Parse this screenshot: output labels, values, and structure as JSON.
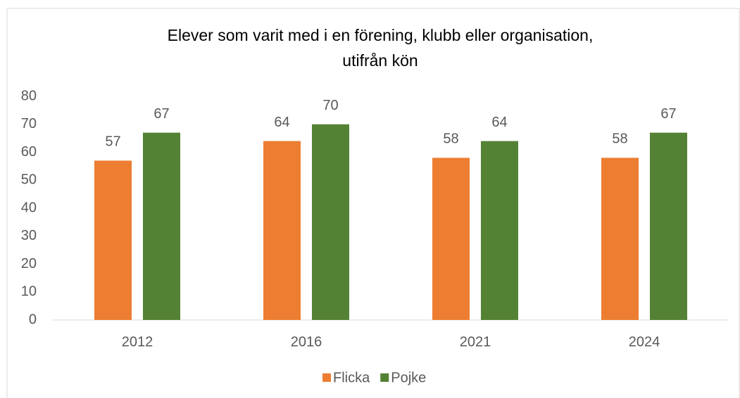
{
  "chart_data": {
    "type": "bar",
    "title": [
      "Elever som varit med i en förening, klubb eller organisation,",
      "utifrån kön"
    ],
    "categories": [
      "2012",
      "2016",
      "2021",
      "2024"
    ],
    "series": [
      {
        "name": "Flicka",
        "color": "#ed7d31",
        "values": [
          57,
          64,
          58,
          58
        ]
      },
      {
        "name": "Pojke",
        "color": "#548235",
        "values": [
          67,
          70,
          64,
          67
        ]
      }
    ],
    "ylim": [
      0,
      80
    ],
    "yticks": [
      0,
      10,
      20,
      30,
      40,
      50,
      60,
      70,
      80
    ],
    "grid": false,
    "legend": "bottom"
  }
}
